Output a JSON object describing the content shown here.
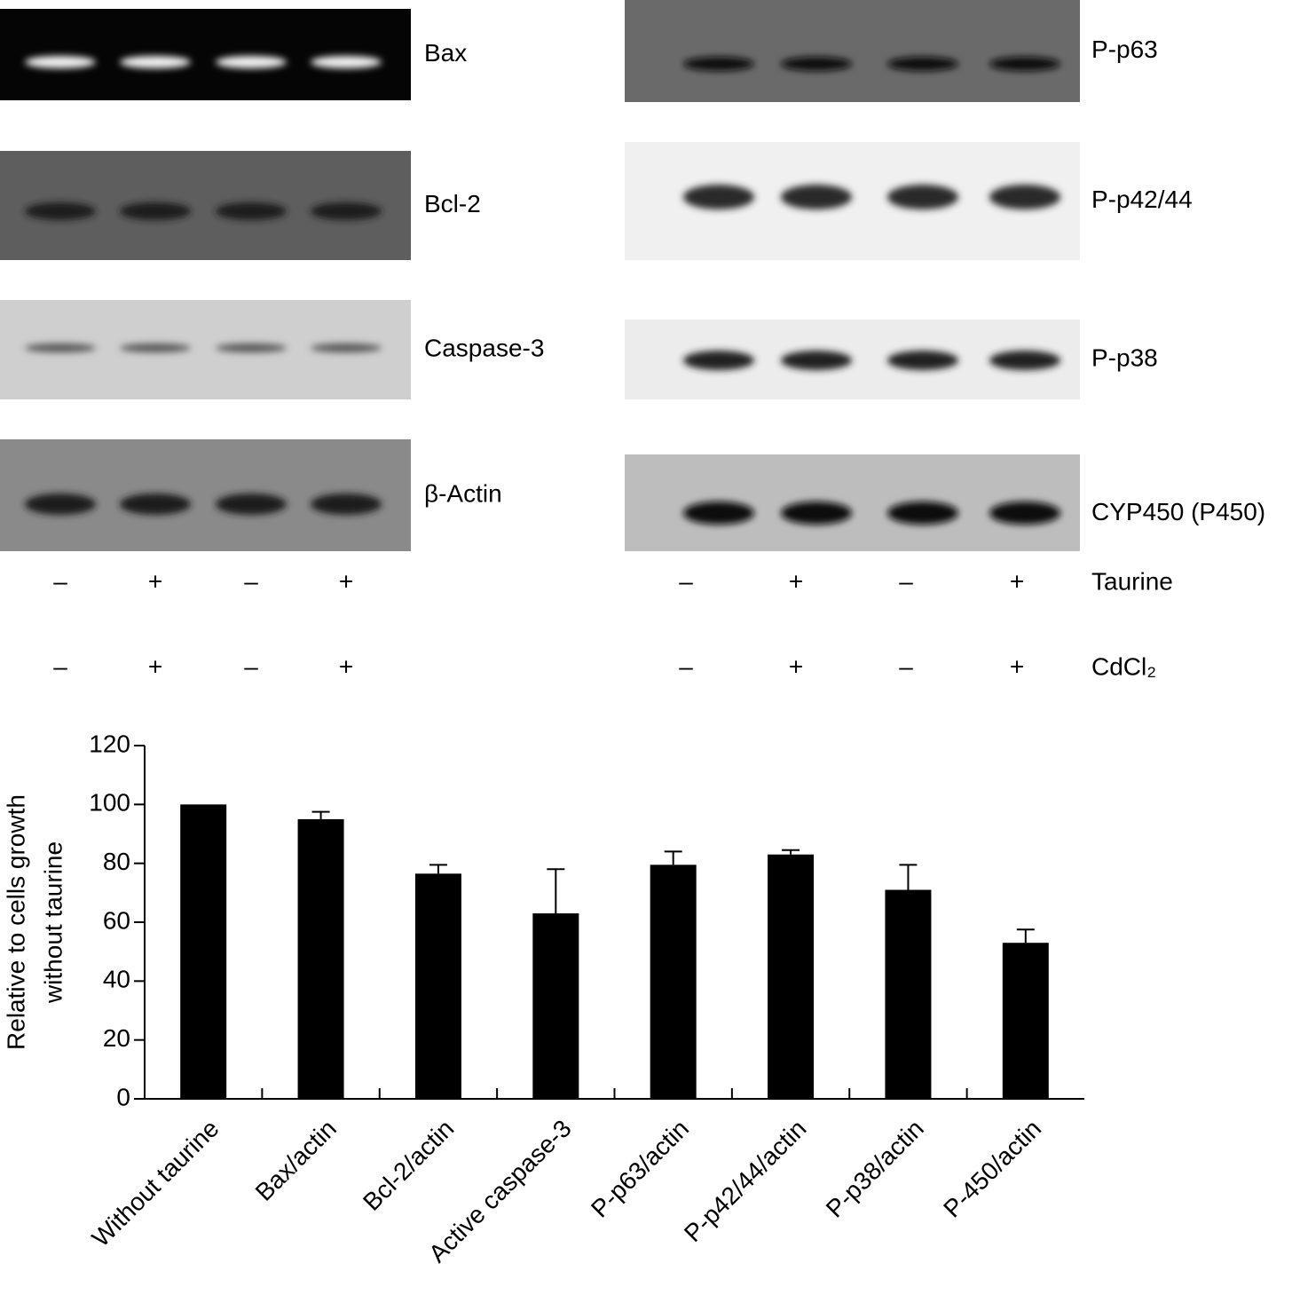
{
  "blots": {
    "left": [
      "Bax",
      "Bcl-2",
      "Caspase-3",
      "β-Actin"
    ],
    "right": [
      "P-p63",
      "P-p42/44",
      "P-p38",
      "CYP450 (P450)"
    ]
  },
  "treatments": [
    {
      "name": "Taurine",
      "signs": [
        "–",
        "+",
        "–",
        "+"
      ]
    },
    {
      "name": "CdCl₂",
      "signs": [
        "–",
        "+",
        "–",
        "+"
      ]
    }
  ],
  "chart_data": {
    "type": "bar",
    "y_label": [
      "Relative to cells growth",
      "without taurine"
    ],
    "categories": [
      "Without taurine",
      "Bax/actin",
      "Bcl-2/actin",
      "Active caspase-3",
      "P-p63/actin",
      "P-p42/44/actin",
      "P-p38/actin",
      "P-450/actin"
    ],
    "values": [
      100,
      95,
      76.5,
      63,
      79.5,
      83,
      71,
      53
    ],
    "errors": [
      null,
      2.5,
      3,
      15,
      4.5,
      1.5,
      8.5,
      4.5
    ],
    "color": "#000000",
    "ylim": [
      0,
      120
    ],
    "yticks": [
      0,
      20,
      40,
      60,
      80,
      100,
      120
    ]
  }
}
